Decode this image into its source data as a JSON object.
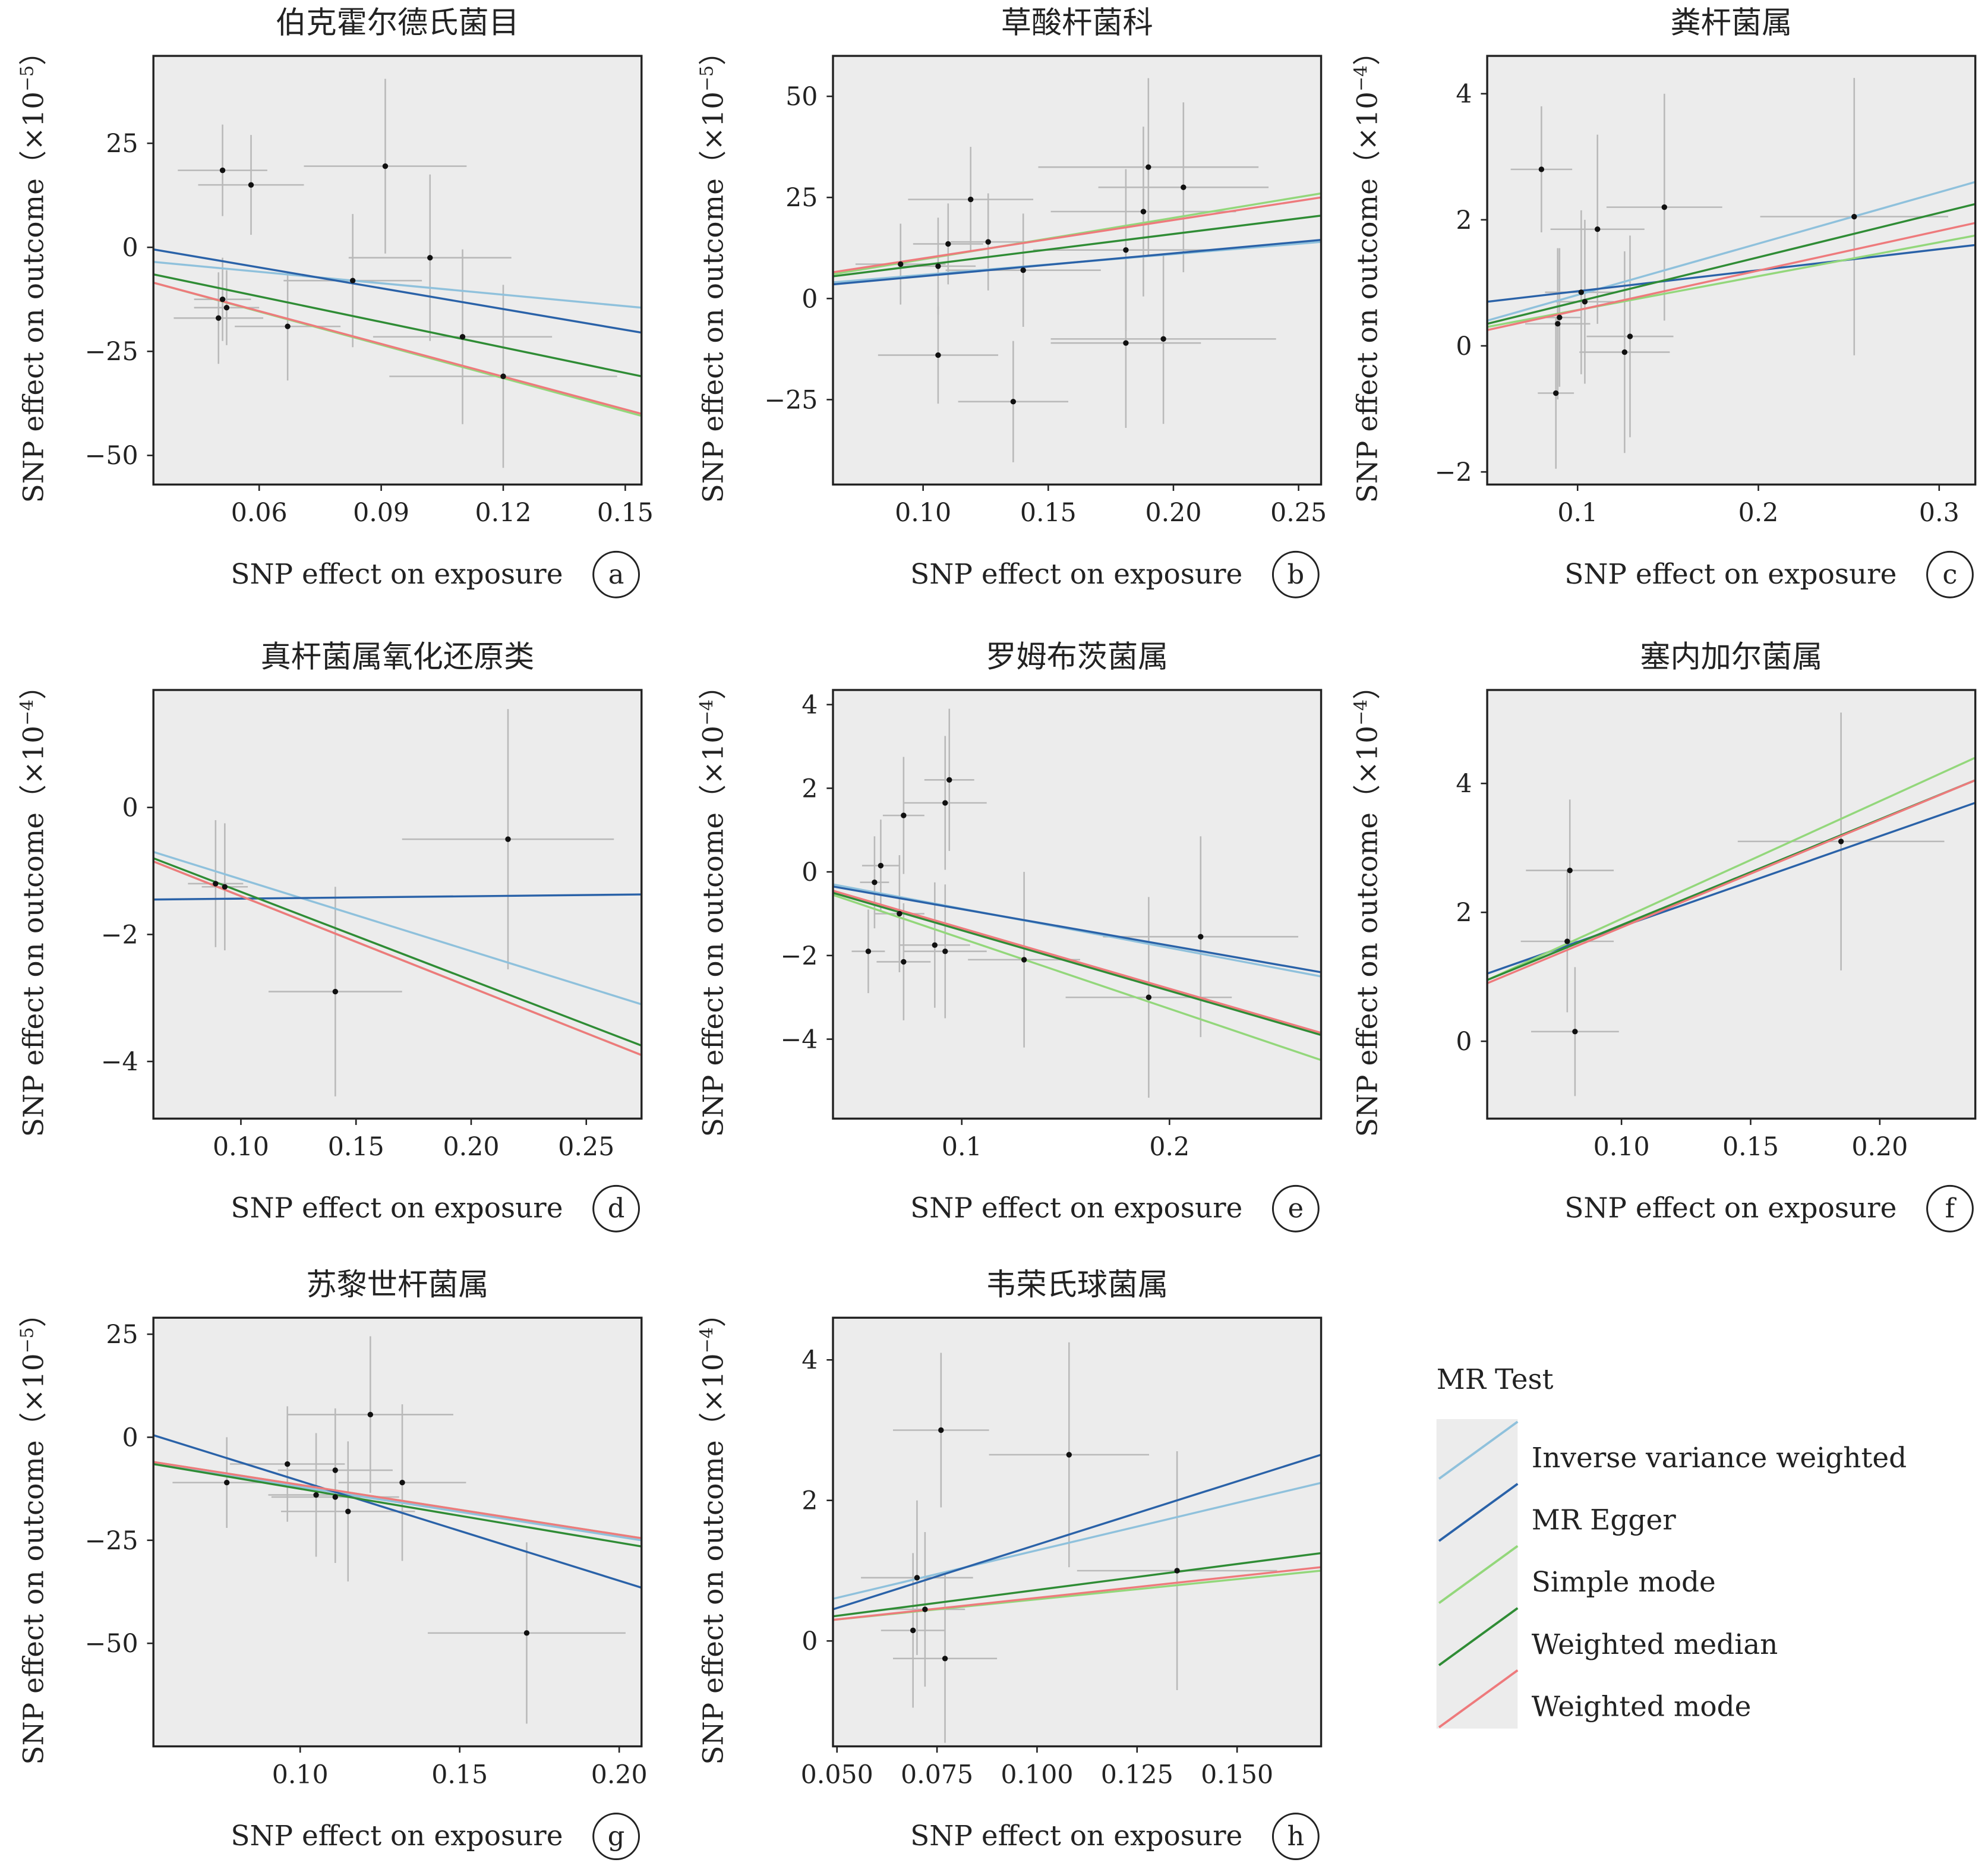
{
  "figure": {
    "x_axis_label": "SNP effect on  exposure",
    "panel_background": "#ececec",
    "errorbar_color": "#b9b9b9",
    "point_color": "#111111"
  },
  "legend": {
    "title": "MR Test",
    "items": [
      {
        "label": "Inverse variance weighted",
        "color": "#8fc1dc"
      },
      {
        "label": "MR Egger",
        "color": "#2a62a8"
      },
      {
        "label": "Simple mode",
        "color": "#93d77b"
      },
      {
        "label": "Weighted median",
        "color": "#2f8c35"
      },
      {
        "label": "Weighted mode",
        "color": "#ee7a7c"
      }
    ]
  },
  "chart_data": [
    {
      "type": "scatter",
      "panel_letter": "a",
      "title": "伯克霍尔德氏菌目",
      "xlabel": "SNP effect on  exposure",
      "ylabel_base": "SNP effect on outcome（×10",
      "ylabel_exp": "−5",
      "ylabel_close": "）",
      "xlim": [
        0.034,
        0.154
      ],
      "ylim": [
        -57,
        46
      ],
      "xticks": [
        0.06,
        0.09,
        0.12,
        0.15
      ],
      "xtick_labels": [
        "0.06",
        "0.09",
        "0.12",
        "0.15"
      ],
      "yticks": [
        -50,
        -25,
        0,
        25
      ],
      "ytick_labels": [
        "−50",
        "−25",
        "0",
        "25"
      ],
      "points": [
        {
          "x": 0.051,
          "y": 18.5,
          "xerr": 0.011,
          "yerr": 11
        },
        {
          "x": 0.058,
          "y": 15,
          "xerr": 0.013,
          "yerr": 12
        },
        {
          "x": 0.051,
          "y": -12.5,
          "xerr": 0.007,
          "yerr": 10
        },
        {
          "x": 0.05,
          "y": -17,
          "xerr": 0.011,
          "yerr": 11
        },
        {
          "x": 0.052,
          "y": -14.5,
          "xerr": 0.008,
          "yerr": 9
        },
        {
          "x": 0.067,
          "y": -19,
          "xerr": 0.013,
          "yerr": 13
        },
        {
          "x": 0.083,
          "y": -8,
          "xerr": 0.017,
          "yerr": 16
        },
        {
          "x": 0.091,
          "y": 19.5,
          "xerr": 0.02,
          "yerr": 21
        },
        {
          "x": 0.102,
          "y": -2.5,
          "xerr": 0.02,
          "yerr": 20
        },
        {
          "x": 0.11,
          "y": -21.5,
          "xerr": 0.022,
          "yerr": 21
        },
        {
          "x": 0.12,
          "y": -31,
          "xerr": 0.028,
          "yerr": 22
        }
      ],
      "lines": [
        {
          "method": "Inverse variance weighted",
          "y_start": -3.5,
          "y_end": -14.5
        },
        {
          "method": "MR Egger",
          "y_start": -0.5,
          "y_end": -20.5
        },
        {
          "method": "Simple mode",
          "y_start": -8.5,
          "y_end": -40.5
        },
        {
          "method": "Weighted median",
          "y_start": -6.5,
          "y_end": -31
        },
        {
          "method": "Weighted mode",
          "y_start": -8.5,
          "y_end": -40
        }
      ]
    },
    {
      "type": "scatter",
      "panel_letter": "b",
      "title": "草酸杆菌科",
      "xlabel": "SNP effect on  exposure",
      "ylabel_base": "SNP effect on outcome（×10",
      "ylabel_exp": "−5",
      "ylabel_close": "）",
      "xlim": [
        0.064,
        0.259
      ],
      "ylim": [
        -46,
        60
      ],
      "xticks": [
        0.1,
        0.15,
        0.2,
        0.25
      ],
      "xtick_labels": [
        "0.10",
        "0.15",
        "0.20",
        "0.25"
      ],
      "yticks": [
        -25,
        0,
        25,
        50
      ],
      "ytick_labels": [
        "−25",
        "0",
        "25",
        "50"
      ],
      "points": [
        {
          "x": 0.091,
          "y": 8.5,
          "xerr": 0.018,
          "yerr": 10
        },
        {
          "x": 0.106,
          "y": 8,
          "xerr": 0.015,
          "yerr": 12
        },
        {
          "x": 0.11,
          "y": 13.5,
          "xerr": 0.014,
          "yerr": 10
        },
        {
          "x": 0.119,
          "y": 24.5,
          "xerr": 0.025,
          "yerr": 13
        },
        {
          "x": 0.126,
          "y": 14,
          "xerr": 0.015,
          "yerr": 12
        },
        {
          "x": 0.106,
          "y": -14,
          "xerr": 0.024,
          "yerr": 12
        },
        {
          "x": 0.14,
          "y": 7,
          "xerr": 0.031,
          "yerr": 14
        },
        {
          "x": 0.136,
          "y": -25.5,
          "xerr": 0.022,
          "yerr": 15
        },
        {
          "x": 0.181,
          "y": 12,
          "xerr": 0.037,
          "yerr": 20
        },
        {
          "x": 0.181,
          "y": -11,
          "xerr": 0.03,
          "yerr": 21
        },
        {
          "x": 0.188,
          "y": 21.5,
          "xerr": 0.037,
          "yerr": 21
        },
        {
          "x": 0.19,
          "y": 32.5,
          "xerr": 0.044,
          "yerr": 22
        },
        {
          "x": 0.196,
          "y": -10,
          "xerr": 0.045,
          "yerr": 21
        },
        {
          "x": 0.204,
          "y": 27.5,
          "xerr": 0.034,
          "yerr": 21
        }
      ],
      "lines": [
        {
          "method": "Inverse variance weighted",
          "y_start": 4,
          "y_end": 14
        },
        {
          "method": "MR Egger",
          "y_start": 3.5,
          "y_end": 14.5
        },
        {
          "method": "Simple mode",
          "y_start": 6,
          "y_end": 26
        },
        {
          "method": "Weighted median",
          "y_start": 5.5,
          "y_end": 20.5
        },
        {
          "method": "Weighted mode",
          "y_start": 6.5,
          "y_end": 25
        }
      ]
    },
    {
      "type": "scatter",
      "panel_letter": "c",
      "title": "粪杆菌属",
      "xlabel": "SNP effect on exposure",
      "ylabel_base": "SNP effect on outcome（×10",
      "ylabel_exp": "−4",
      "ylabel_close": "）",
      "xlim": [
        0.05,
        0.32
      ],
      "ylim": [
        -2.2,
        4.6
      ],
      "xticks": [
        0.1,
        0.2,
        0.3
      ],
      "xtick_labels": [
        "0.1",
        "0.2",
        "0.3"
      ],
      "yticks": [
        -2,
        0,
        2,
        4
      ],
      "ytick_labels": [
        "−2",
        "0",
        "2",
        "4"
      ],
      "points": [
        {
          "x": 0.08,
          "y": 2.8,
          "xerr": 0.017,
          "yerr": 1.0
        },
        {
          "x": 0.088,
          "y": -0.75,
          "xerr": 0.01,
          "yerr": 1.2
        },
        {
          "x": 0.089,
          "y": 0.35,
          "xerr": 0.018,
          "yerr": 1.2
        },
        {
          "x": 0.09,
          "y": 0.45,
          "xerr": 0.012,
          "yerr": 1.1
        },
        {
          "x": 0.102,
          "y": 0.85,
          "xerr": 0.02,
          "yerr": 1.3
        },
        {
          "x": 0.104,
          "y": 0.7,
          "xerr": 0.016,
          "yerr": 1.3
        },
        {
          "x": 0.111,
          "y": 1.85,
          "xerr": 0.026,
          "yerr": 1.5
        },
        {
          "x": 0.126,
          "y": -0.1,
          "xerr": 0.025,
          "yerr": 1.6
        },
        {
          "x": 0.129,
          "y": 0.15,
          "xerr": 0.024,
          "yerr": 1.6
        },
        {
          "x": 0.148,
          "y": 2.2,
          "xerr": 0.032,
          "yerr": 1.8
        },
        {
          "x": 0.253,
          "y": 2.05,
          "xerr": 0.052,
          "yerr": 2.2
        }
      ],
      "lines": [
        {
          "method": "Inverse variance weighted",
          "y_start": 0.4,
          "y_end": 2.6
        },
        {
          "method": "MR Egger",
          "y_start": 0.7,
          "y_end": 1.6
        },
        {
          "method": "Simple mode",
          "y_start": 0.3,
          "y_end": 1.75
        },
        {
          "method": "Weighted median",
          "y_start": 0.35,
          "y_end": 2.25
        },
        {
          "method": "Weighted mode",
          "y_start": 0.25,
          "y_end": 1.95
        }
      ]
    },
    {
      "type": "scatter",
      "panel_letter": "d",
      "title": "真杆菌属氧化还原类",
      "xlabel": "SNP effect on  exposure",
      "ylabel_base": "SNP effect on outcome（×10",
      "ylabel_exp": "−4",
      "ylabel_close": "）",
      "xlim": [
        0.062,
        0.274
      ],
      "ylim": [
        -4.9,
        1.85
      ],
      "xticks": [
        0.1,
        0.15,
        0.2,
        0.25
      ],
      "xtick_labels": [
        "0.10",
        "0.15",
        "0.20",
        "0.25"
      ],
      "yticks": [
        -4,
        -2,
        0
      ],
      "ytick_labels": [
        "−4",
        "−2",
        "0"
      ],
      "points": [
        {
          "x": 0.089,
          "y": -1.2,
          "xerr": 0.012,
          "yerr": 1.0
        },
        {
          "x": 0.093,
          "y": -1.25,
          "xerr": 0.01,
          "yerr": 1.0
        },
        {
          "x": 0.141,
          "y": -2.9,
          "xerr": 0.029,
          "yerr": 1.65
        },
        {
          "x": 0.216,
          "y": -0.5,
          "xerr": 0.046,
          "yerr": 2.05
        }
      ],
      "lines": [
        {
          "method": "Inverse variance weighted",
          "y_start": -0.7,
          "y_end": -3.1
        },
        {
          "method": "MR Egger",
          "y_start": -1.45,
          "y_end": -1.37
        },
        {
          "method": "Simple mode",
          "y_start": -0.85,
          "y_end": -3.9
        },
        {
          "method": "Weighted median",
          "y_start": -0.8,
          "y_end": -3.75
        },
        {
          "method": "Weighted mode",
          "y_start": -0.85,
          "y_end": -3.9
        }
      ]
    },
    {
      "type": "scatter",
      "panel_letter": "e",
      "title": "罗姆布茨菌属",
      "xlabel": "SNP effect on  exposure",
      "ylabel_base": "SNP effect on outcome（×10",
      "ylabel_exp": "−4",
      "ylabel_close": "）",
      "xlim": [
        0.038,
        0.273
      ],
      "ylim": [
        -5.9,
        4.35
      ],
      "xticks": [
        0.1,
        0.2
      ],
      "xtick_labels": [
        "0.1",
        "0.2"
      ],
      "yticks": [
        -4,
        -2,
        0,
        2,
        4
      ],
      "ytick_labels": [
        "−4",
        "−2",
        "0",
        "2",
        "4"
      ],
      "points": [
        {
          "x": 0.055,
          "y": -1.9,
          "xerr": 0.008,
          "yerr": 1.0
        },
        {
          "x": 0.058,
          "y": -0.25,
          "xerr": 0.007,
          "yerr": 1.1
        },
        {
          "x": 0.061,
          "y": 0.15,
          "xerr": 0.009,
          "yerr": 1.1
        },
        {
          "x": 0.07,
          "y": -1.0,
          "xerr": 0.012,
          "yerr": 1.4
        },
        {
          "x": 0.072,
          "y": 1.35,
          "xerr": 0.01,
          "yerr": 1.4
        },
        {
          "x": 0.072,
          "y": -2.15,
          "xerr": 0.013,
          "yerr": 1.4
        },
        {
          "x": 0.087,
          "y": -1.75,
          "xerr": 0.017,
          "yerr": 1.5
        },
        {
          "x": 0.092,
          "y": 1.65,
          "xerr": 0.02,
          "yerr": 1.6
        },
        {
          "x": 0.092,
          "y": -1.9,
          "xerr": 0.02,
          "yerr": 1.6
        },
        {
          "x": 0.094,
          "y": 2.2,
          "xerr": 0.012,
          "yerr": 1.7
        },
        {
          "x": 0.13,
          "y": -2.1,
          "xerr": 0.027,
          "yerr": 2.1
        },
        {
          "x": 0.19,
          "y": -3.0,
          "xerr": 0.04,
          "yerr": 2.4
        },
        {
          "x": 0.215,
          "y": -1.55,
          "xerr": 0.047,
          "yerr": 2.4
        }
      ],
      "lines": [
        {
          "method": "Inverse variance weighted",
          "y_start": -0.3,
          "y_end": -2.5
        },
        {
          "method": "MR Egger",
          "y_start": -0.35,
          "y_end": -2.4
        },
        {
          "method": "Simple mode",
          "y_start": -0.55,
          "y_end": -4.5
        },
        {
          "method": "Weighted median",
          "y_start": -0.5,
          "y_end": -3.9
        },
        {
          "method": "Weighted mode",
          "y_start": -0.45,
          "y_end": -3.85
        }
      ]
    },
    {
      "type": "scatter",
      "panel_letter": "f",
      "title": "塞内加尔菌属",
      "xlabel": "SNP effect on  exposure",
      "ylabel_base": "SNP effect on outcome（×10",
      "ylabel_exp": "−4",
      "ylabel_close": "）",
      "xlim": [
        0.048,
        0.237
      ],
      "ylim": [
        -1.2,
        5.45
      ],
      "xticks": [
        0.1,
        0.15,
        0.2
      ],
      "xtick_labels": [
        "0.10",
        "0.15",
        "0.20"
      ],
      "yticks": [
        0,
        2,
        4
      ],
      "ytick_labels": [
        "0",
        "2",
        "4"
      ],
      "points": [
        {
          "x": 0.08,
          "y": 2.65,
          "xerr": 0.017,
          "yerr": 1.1
        },
        {
          "x": 0.079,
          "y": 1.55,
          "xerr": 0.018,
          "yerr": 1.1
        },
        {
          "x": 0.082,
          "y": 0.15,
          "xerr": 0.017,
          "yerr": 1.0
        },
        {
          "x": 0.185,
          "y": 3.1,
          "xerr": 0.04,
          "yerr": 2.0
        }
      ],
      "lines": [
        {
          "method": "Inverse variance weighted",
          "y_start": 0.95,
          "y_end": 4.05
        },
        {
          "method": "MR Egger",
          "y_start": 1.05,
          "y_end": 3.7
        },
        {
          "method": "Simple mode",
          "y_start": 0.95,
          "y_end": 4.4
        },
        {
          "method": "Weighted median",
          "y_start": 0.95,
          "y_end": 4.05
        },
        {
          "method": "Weighted mode",
          "y_start": 0.9,
          "y_end": 4.05
        }
      ]
    },
    {
      "type": "scatter",
      "panel_letter": "g",
      "title": "苏黎世杆菌属",
      "xlabel": "SNP effect on  exposure",
      "ylabel_base": "SNP effect on outcome（×10",
      "ylabel_exp": "−5",
      "ylabel_close": "）",
      "xlim": [
        0.054,
        0.207
      ],
      "ylim": [
        -75,
        29
      ],
      "xticks": [
        0.1,
        0.15,
        0.2
      ],
      "xtick_labels": [
        "0.10",
        "0.15",
        "0.20"
      ],
      "yticks": [
        -50,
        -25,
        0,
        25
      ],
      "ytick_labels": [
        "−50",
        "−25",
        "0",
        "25"
      ],
      "points": [
        {
          "x": 0.077,
          "y": -11,
          "xerr": 0.017,
          "yerr": 11
        },
        {
          "x": 0.096,
          "y": -6.5,
          "xerr": 0.018,
          "yerr": 14
        },
        {
          "x": 0.105,
          "y": -14,
          "xerr": 0.015,
          "yerr": 15
        },
        {
          "x": 0.111,
          "y": -8,
          "xerr": 0.018,
          "yerr": 15
        },
        {
          "x": 0.111,
          "y": -14.5,
          "xerr": 0.02,
          "yerr": 16
        },
        {
          "x": 0.115,
          "y": -18,
          "xerr": 0.021,
          "yerr": 17
        },
        {
          "x": 0.122,
          "y": 5.5,
          "xerr": 0.026,
          "yerr": 19
        },
        {
          "x": 0.132,
          "y": -11,
          "xerr": 0.02,
          "yerr": 19
        },
        {
          "x": 0.171,
          "y": -47.5,
          "xerr": 0.031,
          "yerr": 22
        }
      ],
      "lines": [
        {
          "method": "Inverse variance weighted",
          "y_start": -6.5,
          "y_end": -25
        },
        {
          "method": "MR Egger",
          "y_start": 0.5,
          "y_end": -36.5
        },
        {
          "method": "Simple mode",
          "y_start": -6,
          "y_end": -24.5
        },
        {
          "method": "Weighted median",
          "y_start": -6.5,
          "y_end": -26.5
        },
        {
          "method": "Weighted mode",
          "y_start": -6,
          "y_end": -24.5
        }
      ]
    },
    {
      "type": "scatter",
      "panel_letter": "h",
      "title": "韦荣氏球菌属",
      "xlabel": "SNP effect on  exposure",
      "ylabel_base": "SNP effect on outcome（×10",
      "ylabel_exp": "−4",
      "ylabel_close": "）",
      "xlim": [
        0.049,
        0.171
      ],
      "ylim": [
        -1.5,
        4.6
      ],
      "xticks": [
        0.05,
        0.075,
        0.1,
        0.125,
        0.15
      ],
      "xtick_labels": [
        "0.050",
        "0.075",
        "0.100",
        "0.125",
        "0.150"
      ],
      "yticks": [
        0,
        2,
        4
      ],
      "ytick_labels": [
        "0",
        "2",
        "4"
      ],
      "points": [
        {
          "x": 0.07,
          "y": 0.9,
          "xerr": 0.014,
          "yerr": 1.1
        },
        {
          "x": 0.069,
          "y": 0.15,
          "xerr": 0.008,
          "yerr": 1.1
        },
        {
          "x": 0.072,
          "y": 0.45,
          "xerr": 0.01,
          "yerr": 1.1
        },
        {
          "x": 0.076,
          "y": 3.0,
          "xerr": 0.012,
          "yerr": 1.1
        },
        {
          "x": 0.077,
          "y": -0.25,
          "xerr": 0.013,
          "yerr": 1.2
        },
        {
          "x": 0.108,
          "y": 2.65,
          "xerr": 0.02,
          "yerr": 1.6
        },
        {
          "x": 0.135,
          "y": 1.0,
          "xerr": 0.025,
          "yerr": 1.7
        }
      ],
      "lines": [
        {
          "method": "Inverse variance weighted",
          "y_start": 0.6,
          "y_end": 2.25
        },
        {
          "method": "MR Egger",
          "y_start": 0.45,
          "y_end": 2.65
        },
        {
          "method": "Simple mode",
          "y_start": 0.3,
          "y_end": 1.0
        },
        {
          "method": "Weighted median",
          "y_start": 0.35,
          "y_end": 1.25
        },
        {
          "method": "Weighted mode",
          "y_start": 0.3,
          "y_end": 1.05
        }
      ]
    }
  ]
}
